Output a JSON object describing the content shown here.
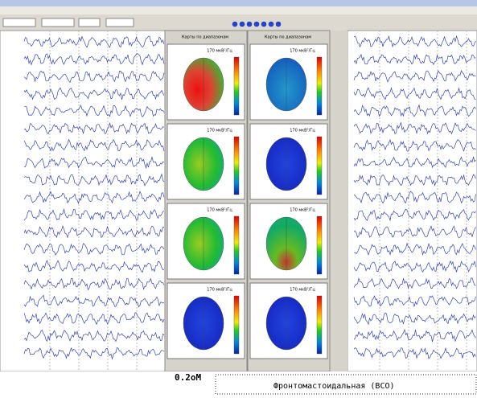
{
  "panels": [
    {
      "title": "Карты по диапазонам",
      "maps": [
        {
          "unit": "170 мкВ²/Гц"
        },
        {
          "unit": "170 мкВ²/Гц"
        },
        {
          "unit": "170 мкВ²/Гц"
        },
        {
          "unit": "170 мкВ²/Гц"
        }
      ]
    },
    {
      "title": "Карты по диапазонам",
      "maps": [
        {
          "unit": "170 мкВ²/Гц"
        },
        {
          "unit": "170 мкВ²/Гц"
        },
        {
          "unit": "170 мкВ²/Гц"
        },
        {
          "unit": "170 мкВ²/Гц"
        }
      ]
    }
  ],
  "footer": {
    "scale": "0.2оМ",
    "montage": "Фронтомастоидальная (ВСО)"
  }
}
